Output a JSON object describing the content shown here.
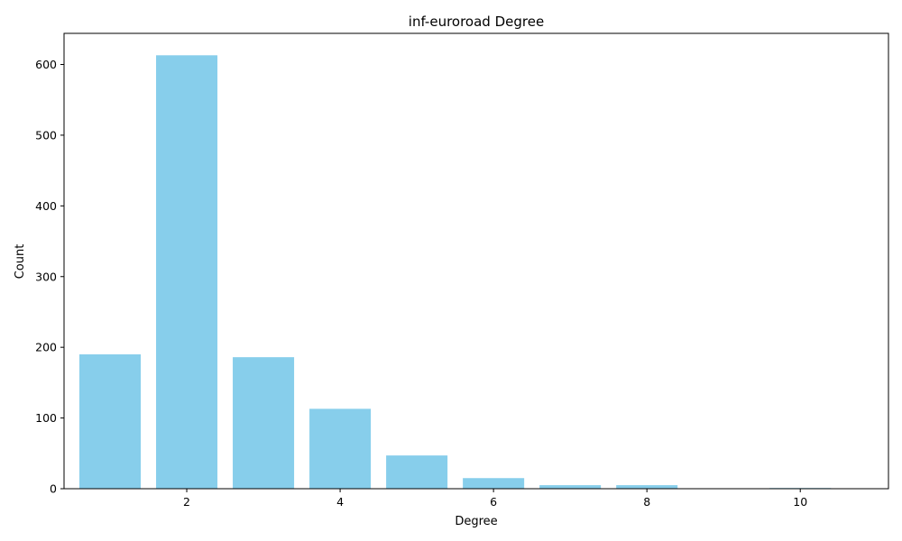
{
  "chart_data": {
    "type": "bar",
    "title": "inf-euroroad Degree",
    "xlabel": "Degree",
    "ylabel": "Count",
    "x": [
      1,
      2,
      3,
      4,
      5,
      6,
      7,
      8,
      9,
      10
    ],
    "values": [
      190,
      613,
      186,
      113,
      47,
      15,
      5,
      5,
      0,
      1
    ],
    "xlim": [
      0.4,
      11.15
    ],
    "ylim": [
      0,
      644
    ],
    "xticks": [
      2,
      4,
      6,
      8,
      10
    ],
    "yticks": [
      0,
      100,
      200,
      300,
      400,
      500,
      600
    ],
    "bar_width": 0.8,
    "bar_color": "#87ceeb",
    "grid": false,
    "legend": "none"
  }
}
